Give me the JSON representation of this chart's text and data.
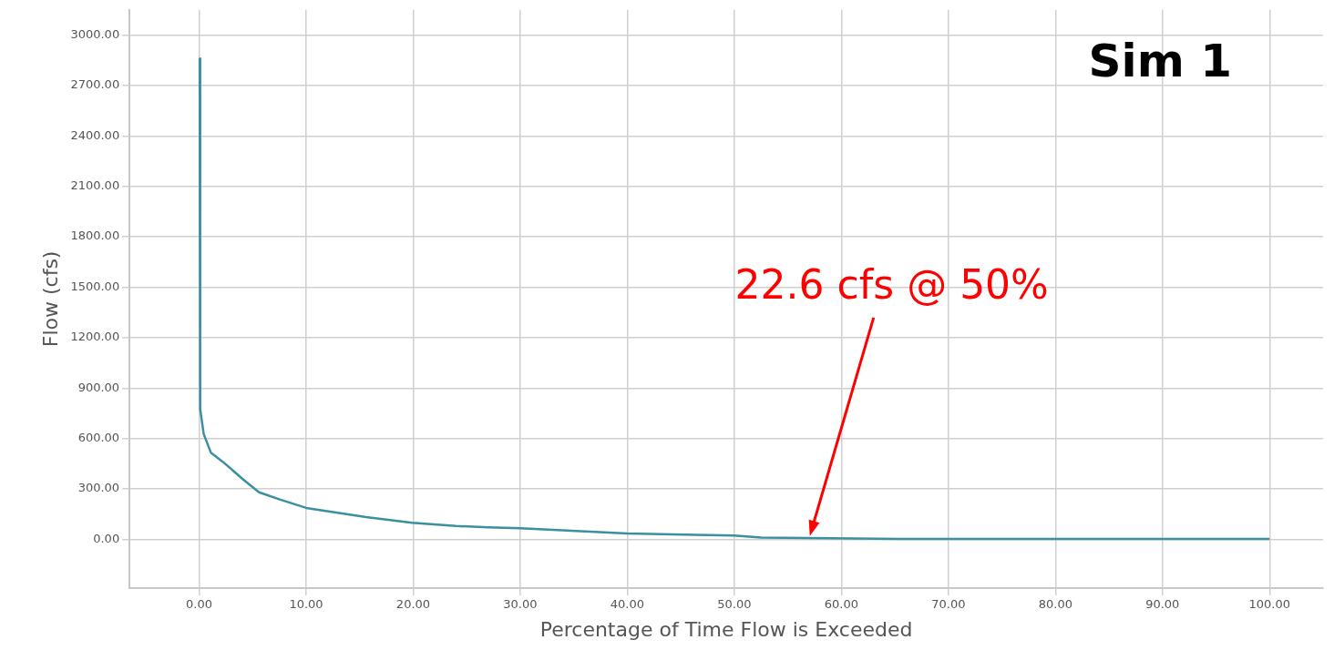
{
  "chart_data": {
    "type": "line",
    "title": "Sim 1",
    "xlabel": "Percentage of Time Flow is Exceeded",
    "ylabel": "Flow (cfs)",
    "x": [
      0.05,
      0.1,
      0.43,
      1.1,
      2.2,
      4.2,
      5.6,
      7.6,
      10,
      15.6,
      19.9,
      24,
      27,
      30,
      40,
      50,
      52.5,
      65.5,
      100
    ],
    "series": [
      {
        "color": "#3a8fa0",
        "values": [
          2860,
          775,
          626,
          516,
          462,
          352,
          280,
          236,
          187,
          132,
          99,
          80,
          71,
          66,
          35,
          23,
          10,
          3,
          3
        ]
      }
    ],
    "xlim": [
      -6.5,
      105
    ],
    "ylim": [
      -290,
      3150
    ],
    "xticks": [
      {
        "value": 0,
        "label": "0.00"
      },
      {
        "value": 10,
        "label": "10.00"
      },
      {
        "value": 20,
        "label": "20.00"
      },
      {
        "value": 30,
        "label": "30.00"
      },
      {
        "value": 40,
        "label": "40.00"
      },
      {
        "value": 50,
        "label": "50.00"
      },
      {
        "value": 60,
        "label": "60.00"
      },
      {
        "value": 70,
        "label": "70.00"
      },
      {
        "value": 80,
        "label": "80.00"
      },
      {
        "value": 90,
        "label": "90.00"
      },
      {
        "value": 100,
        "label": "100.00"
      }
    ],
    "yticks": [
      {
        "value": 0,
        "label": "0.00"
      },
      {
        "value": 300,
        "label": "300.00"
      },
      {
        "value": 600,
        "label": "600.00"
      },
      {
        "value": 900,
        "label": "900.00"
      },
      {
        "value": 1200,
        "label": "1200.00"
      },
      {
        "value": 1500,
        "label": "1500.00"
      },
      {
        "value": 1800,
        "label": "1800.00"
      },
      {
        "value": 2100,
        "label": "2100.00"
      },
      {
        "value": 2400,
        "label": "2400.00"
      },
      {
        "value": 2700,
        "label": "2700.00"
      },
      {
        "value": 3000,
        "label": "3000.00"
      }
    ],
    "annotations": [
      "22.6 cfs @ 50%"
    ],
    "grid": true,
    "marker": "none",
    "line_style": "solid"
  }
}
